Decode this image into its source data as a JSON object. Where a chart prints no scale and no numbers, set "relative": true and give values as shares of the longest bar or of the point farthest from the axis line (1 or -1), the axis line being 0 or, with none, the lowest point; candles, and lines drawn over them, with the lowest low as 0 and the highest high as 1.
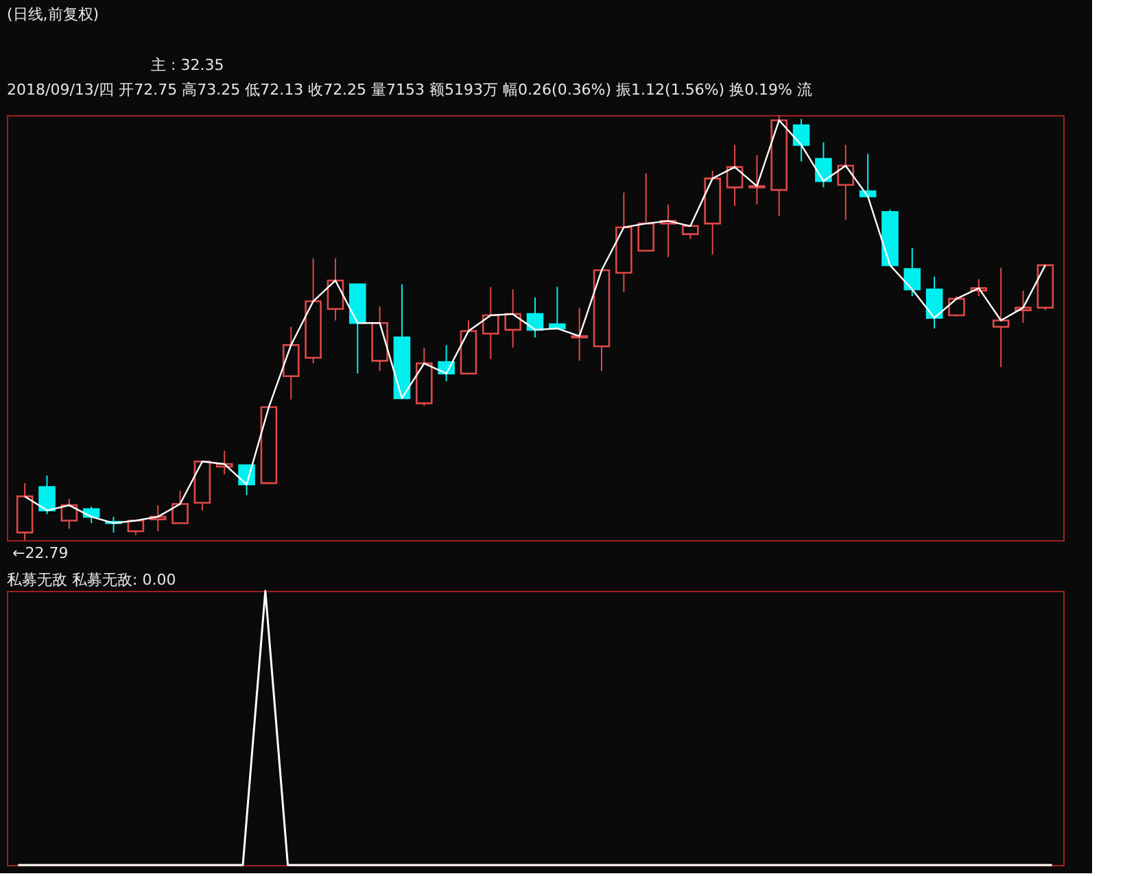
{
  "chart_data": [
    {
      "type": "candlestick",
      "title": "(日线,前复权)",
      "relative": true,
      "categories": [
        null,
        null,
        null,
        null,
        null,
        null,
        null,
        null,
        null,
        null,
        null,
        null,
        null,
        null,
        null,
        null,
        null,
        null,
        null,
        null,
        null,
        null,
        null,
        null,
        null,
        null,
        null,
        null,
        null,
        null,
        null,
        null,
        null,
        null,
        null,
        null,
        null,
        null,
        null,
        null,
        null,
        null,
        null,
        null,
        null,
        null,
        null
      ],
      "ohlc": [
        [
          0.018,
          0.134,
          0,
          0.103
        ],
        [
          0.125,
          0.152,
          0.061,
          0.07
        ],
        [
          0.046,
          0.097,
          0.027,
          0.082
        ],
        [
          0.073,
          0.079,
          0.04,
          0.055
        ],
        [
          0.043,
          0.055,
          0.018,
          0.04
        ],
        [
          0.021,
          0.046,
          0.012,
          0.046
        ],
        [
          0.049,
          0.082,
          0.021,
          0.055
        ],
        [
          0.04,
          0.116,
          0.04,
          0.085
        ],
        [
          0.088,
          0.185,
          0.07,
          0.185
        ],
        [
          0.173,
          0.21,
          0.155,
          0.179
        ],
        [
          0.176,
          0.176,
          0.106,
          0.131
        ],
        [
          0.134,
          0.313,
          0.134,
          0.313
        ],
        [
          0.386,
          0.502,
          0.331,
          0.459
        ],
        [
          0.429,
          0.663,
          0.416,
          0.562
        ],
        [
          0.544,
          0.663,
          0.517,
          0.611
        ],
        [
          0.602,
          0.602,
          0.392,
          0.511
        ],
        [
          0.422,
          0.55,
          0.398,
          0.511
        ],
        [
          0.477,
          0.602,
          0.334,
          0.334
        ],
        [
          0.322,
          0.453,
          0.316,
          0.416
        ],
        [
          0.419,
          0.459,
          0.374,
          0.392
        ],
        [
          0.392,
          0.517,
          0.392,
          0.492
        ],
        [
          0.486,
          0.596,
          0.426,
          0.529
        ],
        [
          0.495,
          0.59,
          0.453,
          0.532
        ],
        [
          0.532,
          0.571,
          0.477,
          0.495
        ],
        [
          0.508,
          0.596,
          0.498,
          0.498
        ],
        [
          0.477,
          0.547,
          0.422,
          0.48
        ],
        [
          0.456,
          0.635,
          0.398,
          0.635
        ],
        [
          0.629,
          0.818,
          0.584,
          0.736
        ],
        [
          0.681,
          0.863,
          0.681,
          0.745
        ],
        [
          0.745,
          0.79,
          0.666,
          0.751
        ],
        [
          0.72,
          0.739,
          0.708,
          0.739
        ],
        [
          0.745,
          0.869,
          0.672,
          0.851
        ],
        [
          0.83,
          0.93,
          0.787,
          0.878
        ],
        [
          0.83,
          0.906,
          0.79,
          0.833
        ],
        [
          0.824,
          1,
          0.763,
          0.988
        ],
        [
          0.976,
          0.991,
          0.891,
          0.93
        ],
        [
          0.897,
          0.936,
          0.83,
          0.845
        ],
        [
          0.836,
          0.93,
          0.754,
          0.881
        ],
        [
          0.821,
          0.909,
          0.809,
          0.809
        ],
        [
          0.772,
          0.778,
          0.647,
          0.647
        ],
        [
          0.638,
          0.687,
          0.574,
          0.59
        ],
        [
          0.59,
          0.62,
          0.498,
          0.523
        ],
        [
          0.529,
          0.574,
          0.526,
          0.568
        ],
        [
          0.587,
          0.614,
          0.574,
          0.593
        ],
        [
          0.502,
          0.641,
          0.407,
          0.517
        ],
        [
          0.541,
          0.587,
          0.511,
          0.547
        ],
        [
          0.547,
          0.647,
          0.541,
          0.647
        ]
      ],
      "colors": [
        "#e04848",
        "#00f0f0",
        "#e04848",
        "#00f0f0",
        "#00f0f0",
        "#e04848",
        "#e04848",
        "#e04848",
        "#e04848",
        "#e04848",
        "#00f0f0",
        "#e04848",
        "#e04848",
        "#e04848",
        "#e04848",
        "#00f0f0",
        "#e04848",
        "#00f0f0",
        "#e04848",
        "#00f0f0",
        "#e04848",
        "#e04848",
        "#e04848",
        "#00f0f0",
        "#00f0f0",
        "#e04848",
        "#e04848",
        "#e04848",
        "#e04848",
        "#e04848",
        "#e04848",
        "#e04848",
        "#e04848",
        "#e04848",
        "#e04848",
        "#00f0f0",
        "#00f0f0",
        "#e04848",
        "#00f0f0",
        "#00f0f0",
        "#00f0f0",
        "#00f0f0",
        "#e04848",
        "#e04848",
        "#e04848",
        "#e04848",
        "#e04848"
      ],
      "series": [
        {
          "type": "line",
          "color": "#ffffff",
          "values": [
            0.103,
            0.07,
            0.082,
            0.055,
            0.04,
            0.046,
            0.055,
            0.085,
            0.185,
            0.179,
            0.131,
            0.313,
            0.459,
            0.562,
            0.611,
            0.511,
            0.511,
            0.334,
            0.416,
            0.392,
            0.492,
            0.529,
            0.532,
            0.495,
            0.498,
            0.48,
            0.635,
            0.736,
            0.745,
            0.751,
            0.739,
            0.851,
            0.878,
            0.833,
            0.988,
            0.93,
            0.845,
            0.881,
            0.809,
            0.647,
            0.59,
            0.523,
            0.568,
            0.593,
            0.517,
            0.547,
            0.647
          ]
        }
      ],
      "annotations": [
        "主 : 32.35",
        "2018/09/13/四 开72.75 高73.25 低72.13 收72.25 量7153 额5193万 幅0.26(0.36%) 振1.12(1.56%) 换0.19% 流",
        "←22.79"
      ],
      "grid": false,
      "tick_labels": false
    },
    {
      "type": "line",
      "title": "私募无敌 私募无敌: 0.00",
      "relative": true,
      "categories": [
        null,
        null,
        null,
        null,
        null,
        null,
        null,
        null,
        null,
        null,
        null,
        null,
        null,
        null,
        null,
        null,
        null,
        null,
        null,
        null,
        null,
        null,
        null,
        null,
        null,
        null,
        null,
        null,
        null,
        null,
        null,
        null,
        null,
        null,
        null,
        null,
        null,
        null,
        null,
        null,
        null,
        null,
        null,
        null,
        null,
        null,
        null
      ],
      "series": [
        {
          "color": "#ffffff",
          "values": [
            0,
            0,
            0,
            0,
            0,
            0,
            0,
            0,
            0,
            0,
            0,
            1,
            0,
            0,
            0,
            0,
            0,
            0,
            0,
            0,
            0,
            0,
            0,
            0,
            0,
            0,
            0,
            0,
            0,
            0,
            0,
            0,
            0,
            0,
            0,
            0,
            0,
            0,
            0,
            0,
            0,
            0,
            0,
            0,
            0,
            0,
            0
          ]
        }
      ],
      "grid": false,
      "tick_labels": false
    }
  ]
}
